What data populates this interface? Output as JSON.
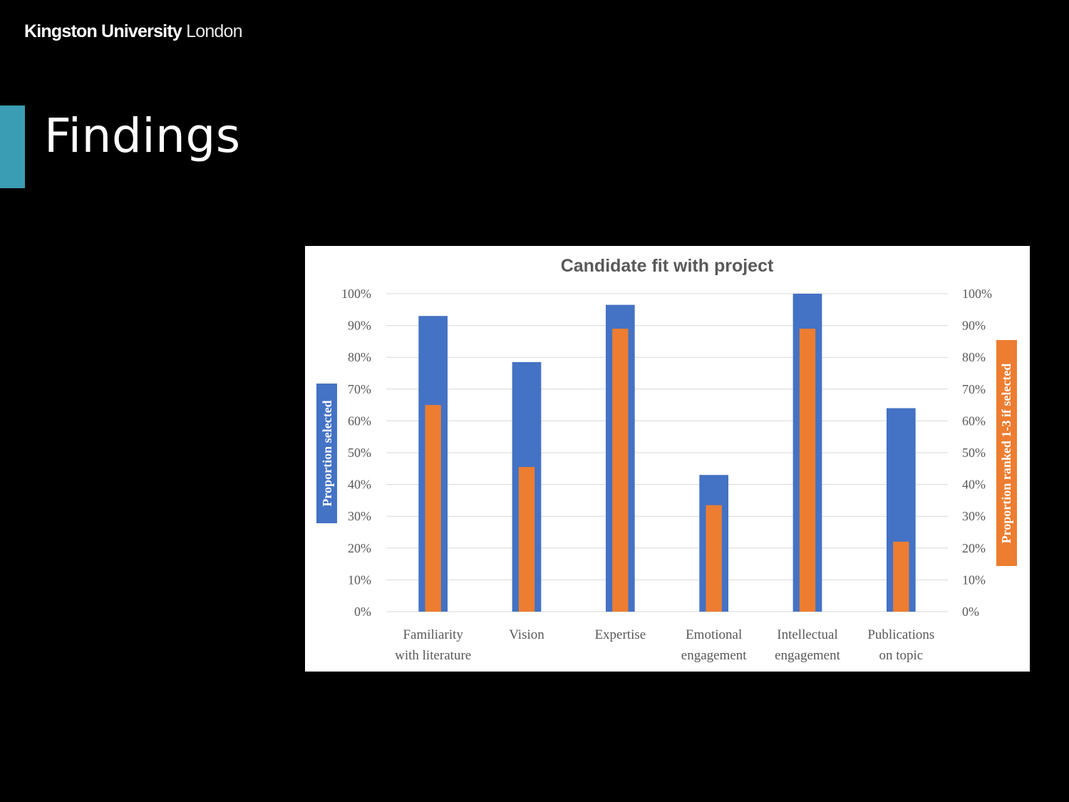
{
  "header": {
    "brand_strong": "Kingston University",
    "brand_light": "London"
  },
  "slide": {
    "title": "Findings"
  },
  "colors": {
    "background": "#000000",
    "accent": "#3b9db3",
    "series_selected": "#4472c4",
    "series_ranked": "#ed7d31",
    "gridline": "#d9d9d9",
    "text": "#595959"
  },
  "chart_data": {
    "type": "bar",
    "title": "Candidate fit with project",
    "categories": [
      [
        "Familiarity",
        "with literature"
      ],
      [
        "Vision"
      ],
      [
        "Expertise"
      ],
      [
        "Emotional",
        "engagement"
      ],
      [
        "Intellectual",
        "engagement"
      ],
      [
        "Publications",
        "on topic"
      ]
    ],
    "series": [
      {
        "values": [
          0.93,
          0.785,
          0.965,
          0.43,
          1.0,
          0.64
        ],
        "axis": "left",
        "color": "#4472c4"
      },
      {
        "values": [
          0.65,
          0.455,
          0.89,
          0.335,
          0.89,
          0.22
        ],
        "axis": "right",
        "color": "#ed7d31"
      }
    ],
    "ylabel": "Proportion selected",
    "y2label": "Proportion ranked 1-3 if selected",
    "ylim": [
      0,
      1
    ],
    "y2lim": [
      0,
      1
    ],
    "yticks": [
      "0%",
      "10%",
      "20%",
      "30%",
      "40%",
      "50%",
      "60%",
      "70%",
      "80%",
      "90%",
      "100%"
    ],
    "grid": true,
    "overlap": true
  }
}
